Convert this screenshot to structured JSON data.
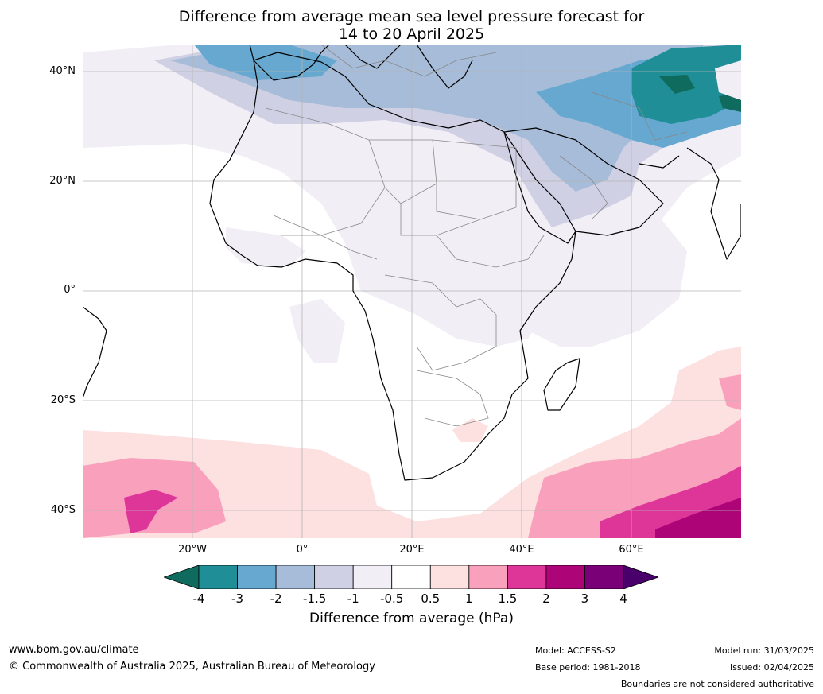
{
  "title_line1": "Difference from average mean sea level pressure forecast for",
  "title_line2": "14 to 20 April 2025",
  "lat_labels": [
    "40°N",
    "20°N",
    "0°",
    "20°S",
    "40°S"
  ],
  "lon_labels": [
    "20°W",
    "0°",
    "20°E",
    "40°E",
    "60°E"
  ],
  "colorbar": {
    "tick_labels": [
      "-4",
      "-3",
      "-2",
      "-1.5",
      "-1",
      "-0.5",
      "0.5",
      "1",
      "1.5",
      "2",
      "3",
      "4"
    ],
    "colors": [
      "#0f6b5e",
      "#1f8e96",
      "#66a8cf",
      "#a6bcd8",
      "#cfd0e4",
      "#f2eef6",
      "#ffffff",
      "#fde0e0",
      "#f9a0bc",
      "#de3599",
      "#ad0578",
      "#7a0078",
      "#4a006a"
    ],
    "caption": "Difference from average (hPa)"
  },
  "footer": {
    "url": "www.bom.gov.au/climate",
    "copyright": "© Commonwealth of Australia 2025, Australian Bureau of Meteorology",
    "model": "Model: ACCESS-S2",
    "base_period": "Base period: 1981-2018",
    "model_run": "Model run: 31/03/2025",
    "issued": "Issued: 02/04/2025",
    "disclaimer": "Boundaries are not considered authoritative"
  }
}
